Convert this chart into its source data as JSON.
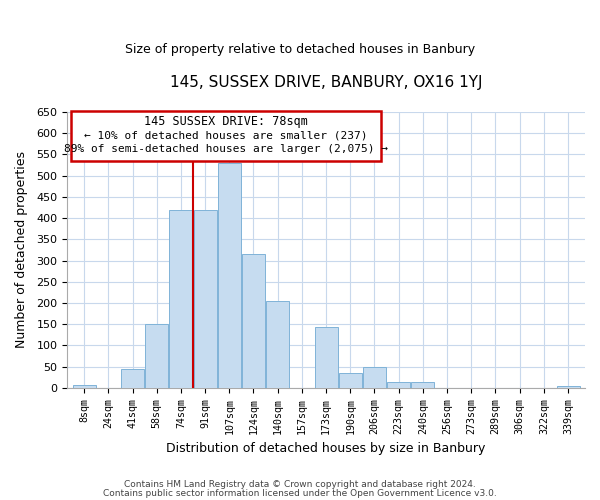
{
  "title": "145, SUSSEX DRIVE, BANBURY, OX16 1YJ",
  "subtitle": "Size of property relative to detached houses in Banbury",
  "xlabel": "Distribution of detached houses by size in Banbury",
  "ylabel": "Number of detached properties",
  "footer_line1": "Contains HM Land Registry data © Crown copyright and database right 2024.",
  "footer_line2": "Contains public sector information licensed under the Open Government Licence v3.0.",
  "bar_labels": [
    "8sqm",
    "24sqm",
    "41sqm",
    "58sqm",
    "74sqm",
    "91sqm",
    "107sqm",
    "124sqm",
    "140sqm",
    "157sqm",
    "173sqm",
    "190sqm",
    "206sqm",
    "223sqm",
    "240sqm",
    "256sqm",
    "273sqm",
    "289sqm",
    "306sqm",
    "322sqm",
    "339sqm"
  ],
  "bar_values": [
    8,
    0,
    45,
    150,
    420,
    420,
    530,
    315,
    205,
    0,
    143,
    35,
    50,
    15,
    15,
    0,
    0,
    0,
    0,
    0,
    5
  ],
  "bar_color": "#c6dcf0",
  "bar_edge_color": "#7fb3d8",
  "vline_color": "#cc0000",
  "vline_x_index": 4.5,
  "annotation_title": "145 SUSSEX DRIVE: 78sqm",
  "annotation_line1": "← 10% of detached houses are smaller (237)",
  "annotation_line2": "89% of semi-detached houses are larger (2,075) →",
  "annotation_box_color": "#ffffff",
  "annotation_box_edge": "#cc0000",
  "ylim": [
    0,
    650
  ],
  "yticks": [
    0,
    50,
    100,
    150,
    200,
    250,
    300,
    350,
    400,
    450,
    500,
    550,
    600,
    650
  ]
}
